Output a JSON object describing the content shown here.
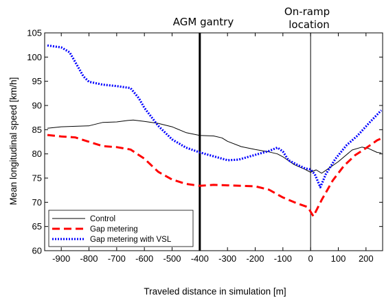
{
  "chart_data": {
    "type": "line",
    "xlabel": "Traveled distance in simulation [m]",
    "ylabel": "Mean longitudinal speed [km/h]",
    "xlim": [
      -960,
      260
    ],
    "ylim": [
      60,
      105
    ],
    "xticks": [
      -900,
      -800,
      -700,
      -600,
      -500,
      -400,
      -300,
      -200,
      -100,
      0,
      100,
      200
    ],
    "yticks": [
      60,
      65,
      70,
      75,
      80,
      85,
      90,
      95,
      100,
      105
    ],
    "grid": false,
    "legend_position": "bottom-left",
    "series": [
      {
        "name": "Control",
        "color": "#000000",
        "style": "solid",
        "points": [
          [
            -950,
            85.3
          ],
          [
            -900,
            85.6
          ],
          [
            -850,
            85.7
          ],
          [
            -800,
            85.8
          ],
          [
            -750,
            86.5
          ],
          [
            -700,
            86.6
          ],
          [
            -660,
            86.9
          ],
          [
            -640,
            87.0
          ],
          [
            -600,
            86.7
          ],
          [
            -550,
            86.3
          ],
          [
            -500,
            85.6
          ],
          [
            -450,
            84.4
          ],
          [
            -400,
            83.8
          ],
          [
            -350,
            83.7
          ],
          [
            -320,
            83.3
          ],
          [
            -300,
            82.6
          ],
          [
            -250,
            81.5
          ],
          [
            -200,
            80.9
          ],
          [
            -150,
            80.4
          ],
          [
            -120,
            80.0
          ],
          [
            -100,
            79.4
          ],
          [
            -60,
            77.8
          ],
          [
            -20,
            76.8
          ],
          [
            0,
            76.2
          ],
          [
            20,
            76.7
          ],
          [
            40,
            76.0
          ],
          [
            60,
            76.8
          ],
          [
            100,
            78.4
          ],
          [
            150,
            80.8
          ],
          [
            185,
            81.4
          ],
          [
            210,
            81.1
          ],
          [
            240,
            80.3
          ],
          [
            255,
            80.2
          ]
        ]
      },
      {
        "name": "Gap metering",
        "color": "#ff0000",
        "style": "dashed",
        "points": [
          [
            -950,
            83.9
          ],
          [
            -900,
            83.6
          ],
          [
            -850,
            83.4
          ],
          [
            -800,
            82.5
          ],
          [
            -750,
            81.6
          ],
          [
            -700,
            81.4
          ],
          [
            -650,
            80.9
          ],
          [
            -600,
            79.0
          ],
          [
            -550,
            76.3
          ],
          [
            -500,
            74.7
          ],
          [
            -450,
            73.8
          ],
          [
            -400,
            73.4
          ],
          [
            -350,
            73.6
          ],
          [
            -300,
            73.5
          ],
          [
            -250,
            73.4
          ],
          [
            -200,
            73.3
          ],
          [
            -150,
            72.6
          ],
          [
            -100,
            71.0
          ],
          [
            -50,
            69.8
          ],
          [
            -10,
            69.0
          ],
          [
            10,
            67.1
          ],
          [
            40,
            70.5
          ],
          [
            80,
            74.5
          ],
          [
            120,
            77.5
          ],
          [
            160,
            79.7
          ],
          [
            200,
            81.2
          ],
          [
            240,
            82.8
          ],
          [
            255,
            83.2
          ]
        ]
      },
      {
        "name": "Gap metering with VSL",
        "color": "#0000ff",
        "style": "dotted",
        "points": [
          [
            -950,
            102.4
          ],
          [
            -900,
            102.0
          ],
          [
            -870,
            101.0
          ],
          [
            -850,
            99.0
          ],
          [
            -820,
            96.0
          ],
          [
            -800,
            94.9
          ],
          [
            -750,
            94.3
          ],
          [
            -700,
            94.0
          ],
          [
            -650,
            93.6
          ],
          [
            -620,
            91.5
          ],
          [
            -600,
            89.5
          ],
          [
            -550,
            85.8
          ],
          [
            -500,
            83.0
          ],
          [
            -450,
            81.3
          ],
          [
            -400,
            80.3
          ],
          [
            -350,
            79.5
          ],
          [
            -300,
            78.7
          ],
          [
            -260,
            78.8
          ],
          [
            -200,
            79.8
          ],
          [
            -150,
            80.6
          ],
          [
            -120,
            81.3
          ],
          [
            -100,
            80.5
          ],
          [
            -80,
            78.7
          ],
          [
            -50,
            77.8
          ],
          [
            -20,
            77.0
          ],
          [
            0,
            76.8
          ],
          [
            15,
            75.8
          ],
          [
            35,
            73.1
          ],
          [
            55,
            75.8
          ],
          [
            90,
            79.0
          ],
          [
            130,
            81.8
          ],
          [
            170,
            83.8
          ],
          [
            210,
            86.3
          ],
          [
            255,
            89.0
          ]
        ]
      }
    ],
    "annotations": [
      {
        "text": "AGM gantry",
        "x": -400,
        "line_style": "thick"
      },
      {
        "text": "On-ramp location",
        "lines": [
          "On-ramp",
          "location"
        ],
        "x": 0,
        "line_style": "thin"
      }
    ]
  }
}
